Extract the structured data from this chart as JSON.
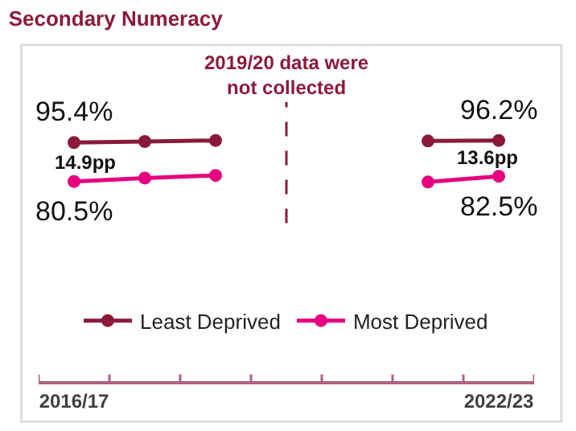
{
  "chart_data": {
    "type": "line",
    "title": "Secondary Numeracy",
    "categories": [
      "2016/17",
      null,
      null,
      null,
      null,
      null,
      "2022/23"
    ],
    "series": [
      {
        "name": "Least Deprived",
        "color": "#8b1a3a",
        "values": [
          95.4,
          95.8,
          96.2,
          null,
          null,
          96.0,
          96.2
        ],
        "value_labels": [
          "95.4%",
          null,
          null,
          null,
          null,
          null,
          "96.2%"
        ]
      },
      {
        "name": "Most Deprived",
        "color": "#e6007e",
        "values": [
          80.5,
          81.8,
          82.8,
          null,
          null,
          80.3,
          82.5
        ],
        "value_labels": [
          "80.5%",
          null,
          null,
          null,
          null,
          null,
          "82.5%"
        ]
      }
    ],
    "annotations": [
      "14.9pp",
      "13.6pp"
    ],
    "ref_lines": [
      {
        "axis": "x",
        "label": "2019/20 data were\nnot collected",
        "color": "#8b1a3a",
        "line_style": "dashed"
      }
    ],
    "marker": "circle",
    "line_style": "solid",
    "legend": "bottom",
    "grid": false
  }
}
